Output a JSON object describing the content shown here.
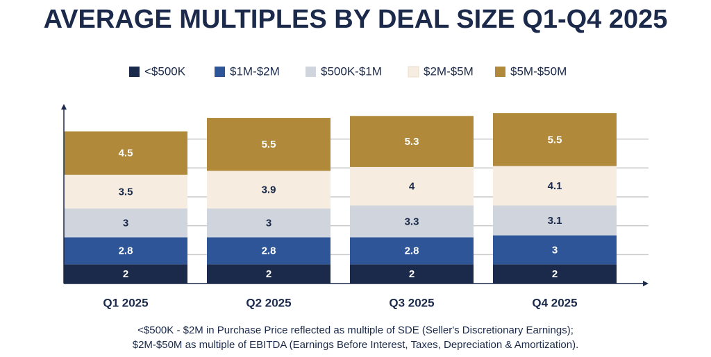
{
  "chart_data": {
    "type": "stacked-bar",
    "title": "AVERAGE MULTIPLES BY DEAL SIZE Q1-Q4 2025",
    "categories": [
      "Q1 2025",
      "Q2 2025",
      "Q3 2025",
      "Q4 2025"
    ],
    "series": [
      {
        "name": "<$500K",
        "color": "#1b2a4a",
        "label_color": "#ffffff",
        "values": [
          2,
          2,
          2,
          2
        ]
      },
      {
        "name": "$1M-$2M",
        "color": "#2e5597",
        "label_color": "#ffffff",
        "values": [
          2.8,
          2.8,
          2.8,
          3
        ]
      },
      {
        "name": "$500K-$1M",
        "color": "#d0d4dc",
        "label_color": "#1b2a4a",
        "values": [
          3,
          3,
          3.3,
          3.1
        ]
      },
      {
        "name": "$2M-$5M",
        "color": "#f7ece0",
        "label_color": "#1b2a4a",
        "values": [
          3.5,
          3.9,
          4,
          4.1
        ]
      },
      {
        "name": "$5M-$50M",
        "color": "#b08a3a",
        "label_color": "#ffffff",
        "values": [
          4.5,
          5.5,
          5.3,
          5.5
        ]
      }
    ],
    "ylim": [
      0,
      18.5
    ],
    "yticks": [
      3,
      6,
      9,
      12,
      15
    ],
    "grid": true,
    "notes": [
      "<$500K - $2M in Purchase Price reflected as multiple of SDE (Seller's Discretionary Earnings);",
      "$2M-$50M as multiple of EBITDA (Earnings Before Interest, Taxes, Depreciation & Amortization)."
    ]
  }
}
